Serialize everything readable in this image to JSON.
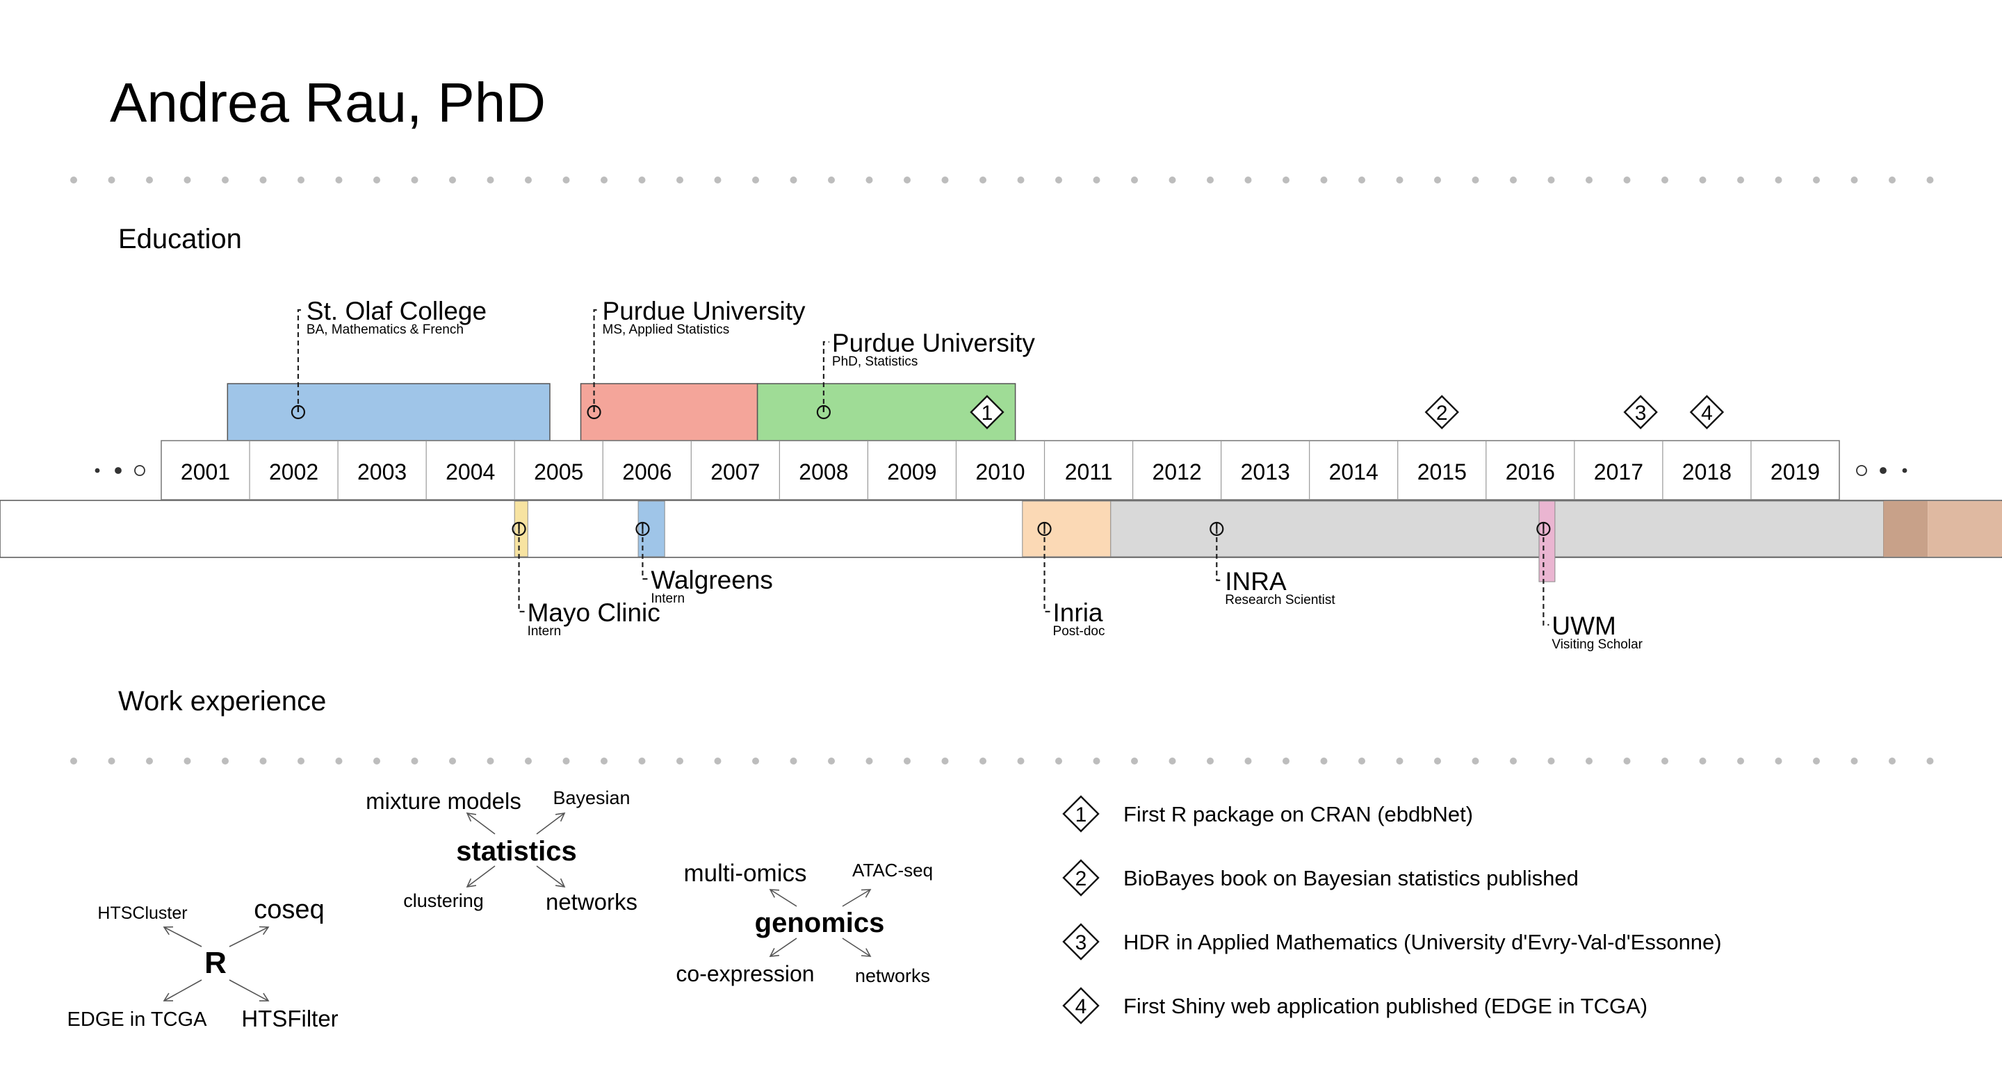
{
  "title": "Andrea Rau, PhD",
  "sections": {
    "education": "Education",
    "work": "Work experience"
  },
  "years": [
    "2001",
    "2002",
    "2003",
    "2004",
    "2005",
    "2006",
    "2007",
    "2008",
    "2009",
    "2010",
    "2011",
    "2012",
    "2013",
    "2014",
    "2015",
    "2016",
    "2017",
    "2018",
    "2019"
  ],
  "education": [
    {
      "name": "St. Olaf College",
      "detail": "BA, Mathematics & French",
      "start": 2000.75,
      "end": 2004.4,
      "marker": 2001.55,
      "color": "#9fc5e8",
      "label_level": 1
    },
    {
      "name": "Purdue University",
      "detail": "MS, Applied Statistics",
      "start": 2004.75,
      "end": 2006.75,
      "marker": 2004.9,
      "color": "#f4a59a",
      "label_level": 1
    },
    {
      "name": "Purdue University",
      "detail": "PhD, Statistics",
      "start": 2006.75,
      "end": 2009.67,
      "marker": 2007.5,
      "color": "#9fdc96",
      "label_level": 2
    }
  ],
  "work": [
    {
      "name": "Mayo Clinic",
      "detail": "Intern",
      "start": 2004.0,
      "end": 2004.15,
      "marker": 2004.05,
      "color": "#f7e3a1",
      "label_level": 2
    },
    {
      "name": "Walgreens",
      "detail": "Intern",
      "start": 2005.4,
      "end": 2005.7,
      "marker": 2005.45,
      "color": "#9fc5e8",
      "label_level": 1
    },
    {
      "name": "Inria",
      "detail": "Post-doc",
      "start": 2009.75,
      "end": 2010.75,
      "marker": 2010.0,
      "color": "#fbd9b5",
      "label_level": 2
    },
    {
      "name": "INRA",
      "detail": "Research Scientist",
      "start": 2010.75,
      "end": 2019.5,
      "marker": 2011.95,
      "color": "#d9d9d9",
      "label_level": 1
    },
    {
      "name": "UWM",
      "detail": "Visiting Scholar",
      "start": 2015.6,
      "end": 2015.78,
      "marker": 2015.65,
      "color": "#eab5d1",
      "label_level": 3
    },
    {
      "name": "",
      "detail": "",
      "start": 2019.5,
      "end": 2020.0,
      "marker": null,
      "color": "#c8a189",
      "label_level": 0
    },
    {
      "name": "",
      "detail": "",
      "start": 2020.0,
      "end": 2022.0,
      "marker": null,
      "color": "#dfb9a1",
      "label_level": 0
    }
  ],
  "milestones": [
    {
      "num": "1",
      "year": 2009.35,
      "text": "First R package on CRAN (ebdbNet)"
    },
    {
      "num": "2",
      "year": 2014.5,
      "text": "BioBayes book on Bayesian statistics published"
    },
    {
      "num": "3",
      "year": 2016.75,
      "text": "HDR in Applied Mathematics (University d'Evry-Val-d'Essonne)"
    },
    {
      "num": "4",
      "year": 2017.5,
      "text": "First Shiny web application published (EDGE in TCGA)"
    }
  ],
  "skills": [
    {
      "center": "R",
      "branches": [
        "HTSCluster",
        "coseq",
        "EDGE in TCGA",
        "HTSFilter"
      ]
    },
    {
      "center": "statistics",
      "branches": [
        "mixture models",
        "Bayesian",
        "clustering",
        "networks"
      ]
    },
    {
      "center": "genomics",
      "branches": [
        "multi-omics",
        "ATAC-seq",
        "co-expression",
        "networks"
      ]
    }
  ]
}
